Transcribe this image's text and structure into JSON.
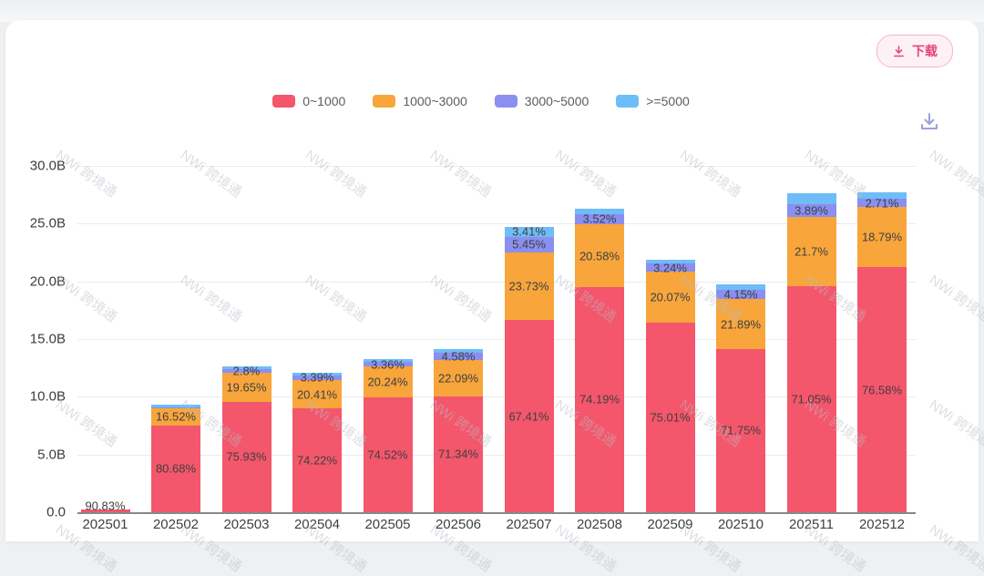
{
  "header": {
    "download_button_label": "下载"
  },
  "watermark": {
    "text": "NWi 跨境通"
  },
  "colors": {
    "red": "#f4566b",
    "orange": "#f8a53b",
    "purple": "#8a8ff0",
    "blue": "#6fbdf8",
    "button_pink": "#e6437c",
    "grid": "#eaebee",
    "axis": "#85888f"
  },
  "chart_data": {
    "type": "bar",
    "stacked": true,
    "title": "",
    "xlabel": "",
    "ylabel": "",
    "ylim": [
      0,
      30
    ],
    "grid": true,
    "legend_position": "top-center",
    "y_tick_labels": [
      "30.0B",
      "25.0B",
      "20.0B",
      "15.0B",
      "10.0B",
      "5.0B",
      "0.0"
    ],
    "legend": [
      {
        "name": "0~1000",
        "color": "#f4566b"
      },
      {
        "name": "1000~3000",
        "color": "#f8a53b"
      },
      {
        "name": "3000~5000",
        "color": "#8a8ff0"
      },
      {
        "name": ">=5000",
        "color": "#6fbdf8"
      }
    ],
    "categories": [
      "202501",
      "202502",
      "202503",
      "202504",
      "202505",
      "202506",
      "202507",
      "202508",
      "202509",
      "202510",
      "202511",
      "202512"
    ],
    "totals_billion": [
      0.08,
      9.3,
      12.6,
      12.1,
      13.3,
      14.1,
      24.7,
      26.3,
      21.9,
      19.7,
      27.6,
      27.7
    ],
    "series": [
      {
        "name": "0~1000",
        "color": "#f4566b",
        "pct": [
          90.83,
          80.68,
          75.93,
          74.22,
          74.52,
          71.34,
          67.41,
          74.19,
          75.01,
          71.75,
          71.05,
          76.58
        ],
        "labels": [
          "90.83%",
          "80.68%",
          "75.93%",
          "74.22%",
          "74.52%",
          "71.34%",
          "67.41%",
          "74.19%",
          "75.01%",
          "71.75%",
          "71.05%",
          "76.58%"
        ]
      },
      {
        "name": "1000~3000",
        "color": "#f8a53b",
        "pct": [
          6.0,
          16.52,
          19.65,
          20.41,
          20.24,
          22.09,
          23.73,
          20.58,
          20.07,
          21.89,
          21.7,
          18.79
        ],
        "labels": [
          null,
          "16.52%",
          "19.65%",
          "20.41%",
          "20.24%",
          "22.09%",
          "23.73%",
          "20.58%",
          "20.07%",
          "21.89%",
          "21.7%",
          "18.79%"
        ]
      },
      {
        "name": "3000~5000",
        "color": "#8a8ff0",
        "pct": [
          1.5,
          0.8,
          2.8,
          3.39,
          3.36,
          4.58,
          5.45,
          3.52,
          3.24,
          4.15,
          3.89,
          2.71
        ],
        "labels": [
          null,
          null,
          "2.8%",
          "3.39%",
          "3.36%",
          "4.58%",
          "5.45%",
          "3.52%",
          "3.24%",
          "4.15%",
          "3.89%",
          "2.71%"
        ]
      },
      {
        "name": ">=5000",
        "color": "#6fbdf8",
        "pct": [
          1.67,
          2.0,
          1.62,
          1.98,
          1.88,
          1.99,
          3.41,
          1.71,
          1.68,
          2.21,
          3.36,
          1.92
        ],
        "labels": [
          null,
          null,
          null,
          null,
          null,
          null,
          "3.41%",
          null,
          null,
          null,
          null,
          null
        ]
      }
    ]
  }
}
